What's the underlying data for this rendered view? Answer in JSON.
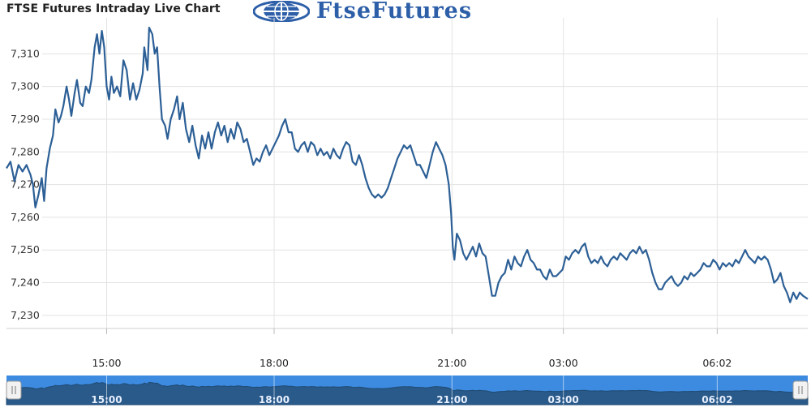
{
  "header": {
    "title": "FTSE Futures Intraday Live Chart",
    "brand_name": "FtseFutures",
    "brand_logo_icon": "globe-logo-icon"
  },
  "colors": {
    "line": "#2c5f96",
    "grid": "#e3e3e3",
    "navigator_bg": "#3d8be0",
    "navigator_fill": "#2a5a8a"
  },
  "chart_data": {
    "type": "line",
    "title": "FTSE Futures Intraday Live Chart",
    "xlabel": "",
    "ylabel": "",
    "ylim": [
      7226,
      7321
    ],
    "y_ticks": [
      7230,
      7240,
      7250,
      7260,
      7270,
      7280,
      7290,
      7300,
      7310
    ],
    "y_tick_labels": [
      "7,230",
      "7,240",
      "7,250",
      "7,260",
      "7,270",
      "7,280",
      "7,290",
      "7,300",
      "7,310"
    ],
    "x_ticks": [
      {
        "pos": 0.125,
        "label": "15:00"
      },
      {
        "pos": 0.334,
        "label": "18:00"
      },
      {
        "pos": 0.556,
        "label": "21:00"
      },
      {
        "pos": 0.695,
        "label": "03:00"
      },
      {
        "pos": 0.887,
        "label": "06:02"
      }
    ],
    "grid": true,
    "navigator": true,
    "series": [
      {
        "values": [
          [
            0.0,
            7275
          ],
          [
            0.005,
            7277
          ],
          [
            0.01,
            7271
          ],
          [
            0.015,
            7276
          ],
          [
            0.02,
            7274
          ],
          [
            0.025,
            7276
          ],
          [
            0.03,
            7273
          ],
          [
            0.033,
            7270
          ],
          [
            0.036,
            7263
          ],
          [
            0.04,
            7267
          ],
          [
            0.044,
            7272
          ],
          [
            0.047,
            7265
          ],
          [
            0.05,
            7275
          ],
          [
            0.054,
            7281
          ],
          [
            0.058,
            7285
          ],
          [
            0.061,
            7293
          ],
          [
            0.065,
            7289
          ],
          [
            0.068,
            7291
          ],
          [
            0.071,
            7294
          ],
          [
            0.075,
            7300
          ],
          [
            0.078,
            7296
          ],
          [
            0.081,
            7291
          ],
          [
            0.085,
            7298
          ],
          [
            0.088,
            7302
          ],
          [
            0.092,
            7295
          ],
          [
            0.095,
            7294
          ],
          [
            0.099,
            7300
          ],
          [
            0.103,
            7298
          ],
          [
            0.106,
            7302
          ],
          [
            0.11,
            7312
          ],
          [
            0.113,
            7316
          ],
          [
            0.116,
            7310
          ],
          [
            0.119,
            7317
          ],
          [
            0.122,
            7312
          ],
          [
            0.125,
            7300
          ],
          [
            0.128,
            7296
          ],
          [
            0.131,
            7303
          ],
          [
            0.134,
            7298
          ],
          [
            0.138,
            7300
          ],
          [
            0.142,
            7297
          ],
          [
            0.146,
            7308
          ],
          [
            0.15,
            7305
          ],
          [
            0.154,
            7296
          ],
          [
            0.158,
            7301
          ],
          [
            0.162,
            7296
          ],
          [
            0.166,
            7299
          ],
          [
            0.17,
            7304
          ],
          [
            0.172,
            7312
          ],
          [
            0.176,
            7305
          ],
          [
            0.178,
            7318
          ],
          [
            0.182,
            7316
          ],
          [
            0.185,
            7310
          ],
          [
            0.188,
            7312
          ],
          [
            0.191,
            7300
          ],
          [
            0.194,
            7290
          ],
          [
            0.198,
            7288
          ],
          [
            0.201,
            7284
          ],
          [
            0.205,
            7290
          ],
          [
            0.209,
            7293
          ],
          [
            0.213,
            7297
          ],
          [
            0.216,
            7290
          ],
          [
            0.22,
            7295
          ],
          [
            0.224,
            7287
          ],
          [
            0.228,
            7283
          ],
          [
            0.232,
            7288
          ],
          [
            0.236,
            7282
          ],
          [
            0.24,
            7278
          ],
          [
            0.244,
            7285
          ],
          [
            0.248,
            7281
          ],
          [
            0.252,
            7286
          ],
          [
            0.256,
            7281
          ],
          [
            0.26,
            7286
          ],
          [
            0.264,
            7289
          ],
          [
            0.268,
            7285
          ],
          [
            0.272,
            7288
          ],
          [
            0.276,
            7283
          ],
          [
            0.28,
            7287
          ],
          [
            0.284,
            7284
          ],
          [
            0.288,
            7289
          ],
          [
            0.292,
            7287
          ],
          [
            0.296,
            7283
          ],
          [
            0.3,
            7284
          ],
          [
            0.304,
            7280
          ],
          [
            0.308,
            7276
          ],
          [
            0.312,
            7278
          ],
          [
            0.316,
            7277
          ],
          [
            0.32,
            7280
          ],
          [
            0.324,
            7282
          ],
          [
            0.328,
            7279
          ],
          [
            0.332,
            7281
          ],
          [
            0.336,
            7283
          ],
          [
            0.34,
            7285
          ],
          [
            0.344,
            7288
          ],
          [
            0.348,
            7290
          ],
          [
            0.352,
            7286
          ],
          [
            0.356,
            7286
          ],
          [
            0.36,
            7281
          ],
          [
            0.364,
            7280
          ],
          [
            0.368,
            7282
          ],
          [
            0.372,
            7283
          ],
          [
            0.376,
            7280
          ],
          [
            0.38,
            7283
          ],
          [
            0.384,
            7282
          ],
          [
            0.388,
            7279
          ],
          [
            0.392,
            7281
          ],
          [
            0.396,
            7279
          ],
          [
            0.4,
            7280
          ],
          [
            0.404,
            7278
          ],
          [
            0.408,
            7281
          ],
          [
            0.412,
            7279
          ],
          [
            0.416,
            7278
          ],
          [
            0.42,
            7281
          ],
          [
            0.424,
            7283
          ],
          [
            0.428,
            7282
          ],
          [
            0.432,
            7277
          ],
          [
            0.436,
            7276
          ],
          [
            0.44,
            7279
          ],
          [
            0.444,
            7276
          ],
          [
            0.448,
            7272
          ],
          [
            0.452,
            7269
          ],
          [
            0.456,
            7267
          ],
          [
            0.46,
            7266
          ],
          [
            0.464,
            7267
          ],
          [
            0.468,
            7266
          ],
          [
            0.472,
            7267
          ],
          [
            0.476,
            7269
          ],
          [
            0.48,
            7272
          ],
          [
            0.484,
            7275
          ],
          [
            0.488,
            7278
          ],
          [
            0.492,
            7280
          ],
          [
            0.496,
            7282
          ],
          [
            0.5,
            7281
          ],
          [
            0.504,
            7282
          ],
          [
            0.508,
            7279
          ],
          [
            0.512,
            7276
          ],
          [
            0.516,
            7276
          ],
          [
            0.52,
            7274
          ],
          [
            0.524,
            7272
          ],
          [
            0.528,
            7276
          ],
          [
            0.532,
            7280
          ],
          [
            0.536,
            7283
          ],
          [
            0.54,
            7281
          ],
          [
            0.544,
            7279
          ],
          [
            0.548,
            7276
          ],
          [
            0.552,
            7270
          ],
          [
            0.555,
            7261
          ],
          [
            0.557,
            7251
          ],
          [
            0.559,
            7247
          ],
          [
            0.562,
            7255
          ],
          [
            0.566,
            7253
          ],
          [
            0.57,
            7249
          ],
          [
            0.574,
            7247
          ],
          [
            0.578,
            7249
          ],
          [
            0.582,
            7251
          ],
          [
            0.586,
            7248
          ],
          [
            0.59,
            7252
          ],
          [
            0.594,
            7249
          ],
          [
            0.598,
            7248
          ],
          [
            0.602,
            7242
          ],
          [
            0.606,
            7236
          ],
          [
            0.61,
            7236
          ],
          [
            0.614,
            7240
          ],
          [
            0.618,
            7242
          ],
          [
            0.622,
            7243
          ],
          [
            0.626,
            7247
          ],
          [
            0.63,
            7244
          ],
          [
            0.634,
            7248
          ],
          [
            0.638,
            7246
          ],
          [
            0.642,
            7245
          ],
          [
            0.646,
            7248
          ],
          [
            0.65,
            7250
          ],
          [
            0.654,
            7247
          ],
          [
            0.658,
            7246
          ],
          [
            0.662,
            7244
          ],
          [
            0.666,
            7244
          ],
          [
            0.67,
            7242
          ],
          [
            0.674,
            7241
          ],
          [
            0.678,
            7244
          ],
          [
            0.682,
            7242
          ],
          [
            0.686,
            7242
          ],
          [
            0.69,
            7243
          ],
          [
            0.694,
            7244
          ],
          [
            0.698,
            7248
          ],
          [
            0.702,
            7247
          ],
          [
            0.706,
            7249
          ],
          [
            0.71,
            7250
          ],
          [
            0.714,
            7249
          ],
          [
            0.718,
            7251
          ],
          [
            0.722,
            7252
          ],
          [
            0.726,
            7248
          ],
          [
            0.73,
            7246
          ],
          [
            0.734,
            7247
          ],
          [
            0.738,
            7246
          ],
          [
            0.742,
            7248
          ],
          [
            0.746,
            7246
          ],
          [
            0.75,
            7245
          ],
          [
            0.754,
            7247
          ],
          [
            0.758,
            7248
          ],
          [
            0.762,
            7247
          ],
          [
            0.766,
            7249
          ],
          [
            0.77,
            7248
          ],
          [
            0.774,
            7247
          ],
          [
            0.778,
            7249
          ],
          [
            0.782,
            7250
          ],
          [
            0.786,
            7249
          ],
          [
            0.79,
            7251
          ],
          [
            0.794,
            7249
          ],
          [
            0.798,
            7250
          ],
          [
            0.802,
            7247
          ],
          [
            0.806,
            7243
          ],
          [
            0.81,
            7240
          ],
          [
            0.814,
            7238
          ],
          [
            0.818,
            7238
          ],
          [
            0.822,
            7240
          ],
          [
            0.826,
            7241
          ],
          [
            0.83,
            7242
          ],
          [
            0.834,
            7240
          ],
          [
            0.838,
            7239
          ],
          [
            0.842,
            7240
          ],
          [
            0.846,
            7242
          ],
          [
            0.85,
            7241
          ],
          [
            0.854,
            7243
          ],
          [
            0.858,
            7242
          ],
          [
            0.862,
            7243
          ],
          [
            0.866,
            7244
          ],
          [
            0.87,
            7246
          ],
          [
            0.874,
            7245
          ],
          [
            0.878,
            7245
          ],
          [
            0.882,
            7247
          ],
          [
            0.886,
            7246
          ],
          [
            0.89,
            7244
          ],
          [
            0.894,
            7246
          ],
          [
            0.898,
            7245
          ],
          [
            0.902,
            7246
          ],
          [
            0.906,
            7245
          ],
          [
            0.91,
            7247
          ],
          [
            0.914,
            7246
          ],
          [
            0.918,
            7248
          ],
          [
            0.922,
            7250
          ],
          [
            0.926,
            7248
          ],
          [
            0.93,
            7247
          ],
          [
            0.934,
            7246
          ],
          [
            0.938,
            7248
          ],
          [
            0.942,
            7247
          ],
          [
            0.946,
            7248
          ],
          [
            0.95,
            7247
          ],
          [
            0.954,
            7244
          ],
          [
            0.958,
            7240
          ],
          [
            0.962,
            7241
          ],
          [
            0.966,
            7243
          ],
          [
            0.97,
            7239
          ],
          [
            0.974,
            7237
          ],
          [
            0.978,
            7234
          ],
          [
            0.982,
            7237
          ],
          [
            0.986,
            7235
          ],
          [
            0.99,
            7237
          ],
          [
            0.994,
            7236
          ],
          [
            1.0,
            7235
          ]
        ]
      }
    ]
  }
}
